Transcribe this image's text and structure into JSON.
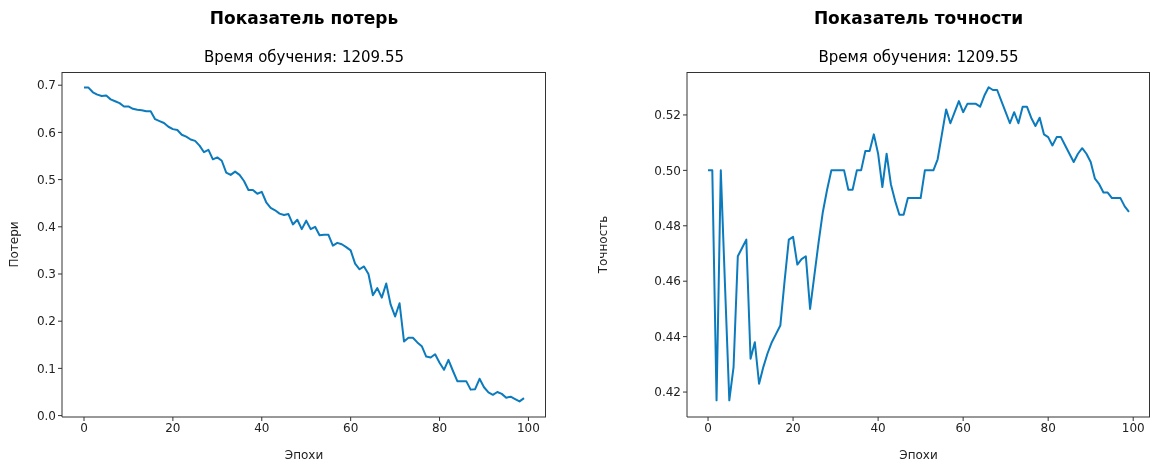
{
  "chart_data": [
    {
      "type": "line",
      "title": "Показатель потерь",
      "subtitle": "Время обучения: 1209.55",
      "xlabel": "Эпохи",
      "ylabel": "Потери",
      "x": [
        0,
        1,
        2,
        3,
        4,
        5,
        6,
        7,
        8,
        9,
        10,
        11,
        12,
        13,
        14,
        15,
        16,
        17,
        18,
        19,
        20,
        21,
        22,
        23,
        24,
        25,
        26,
        27,
        28,
        29,
        30,
        31,
        32,
        33,
        34,
        35,
        36,
        37,
        38,
        39,
        40,
        41,
        42,
        43,
        44,
        45,
        46,
        47,
        48,
        49,
        50,
        51,
        52,
        53,
        54,
        55,
        56,
        57,
        58,
        59,
        60,
        61,
        62,
        63,
        64,
        65,
        66,
        67,
        68,
        69,
        70,
        71,
        72,
        73,
        74,
        75,
        76,
        77,
        78,
        79,
        80,
        81,
        82,
        83,
        84,
        85,
        86,
        87,
        88,
        89,
        90,
        91,
        92,
        93,
        94,
        95,
        96,
        97,
        98,
        99
      ],
      "series": [
        {
          "color": "#0c7bbd",
          "values": [
            0.695,
            0.695,
            0.685,
            0.68,
            0.677,
            0.678,
            0.67,
            0.666,
            0.662,
            0.655,
            0.655,
            0.65,
            0.648,
            0.647,
            0.645,
            0.645,
            0.628,
            0.624,
            0.62,
            0.612,
            0.607,
            0.605,
            0.595,
            0.591,
            0.585,
            0.582,
            0.572,
            0.558,
            0.563,
            0.543,
            0.547,
            0.54,
            0.515,
            0.51,
            0.517,
            0.51,
            0.497,
            0.478,
            0.478,
            0.47,
            0.474,
            0.452,
            0.44,
            0.435,
            0.428,
            0.425,
            0.427,
            0.405,
            0.415,
            0.395,
            0.413,
            0.395,
            0.4,
            0.382,
            0.383,
            0.383,
            0.36,
            0.366,
            0.363,
            0.357,
            0.35,
            0.322,
            0.31,
            0.316,
            0.3,
            0.255,
            0.27,
            0.25,
            0.28,
            0.235,
            0.21,
            0.238,
            0.157,
            0.165,
            0.165,
            0.155,
            0.147,
            0.125,
            0.123,
            0.13,
            0.112,
            0.097,
            0.118,
            0.095,
            0.073,
            0.073,
            0.073,
            0.055,
            0.056,
            0.078,
            0.06,
            0.049,
            0.044,
            0.05,
            0.046,
            0.038,
            0.04,
            0.035,
            0.03,
            0.037
          ]
        }
      ],
      "xlim": [
        -4.95,
        103.95
      ],
      "xticks": [
        0,
        20,
        40,
        60,
        80,
        100
      ],
      "ylim": [
        -0.003,
        0.728
      ],
      "yticks": [
        {
          "value": 0,
          "label": "0.0"
        },
        0.1,
        0.2,
        0.3,
        0.4,
        0.5,
        0.6,
        0.7
      ],
      "grid": false,
      "legend": false
    },
    {
      "type": "line",
      "title": "Показатель точности",
      "subtitle": "Время обучения: 1209.55",
      "xlabel": "Эпохи",
      "ylabel": "Точность",
      "x": [
        0,
        1,
        2,
        3,
        4,
        5,
        6,
        7,
        8,
        9,
        10,
        11,
        12,
        13,
        14,
        15,
        16,
        17,
        18,
        19,
        20,
        21,
        22,
        23,
        24,
        25,
        26,
        27,
        28,
        29,
        30,
        31,
        32,
        33,
        34,
        35,
        36,
        37,
        38,
        39,
        40,
        41,
        42,
        43,
        44,
        45,
        46,
        47,
        48,
        49,
        50,
        51,
        52,
        53,
        54,
        55,
        56,
        57,
        58,
        59,
        60,
        61,
        62,
        63,
        64,
        65,
        66,
        67,
        68,
        69,
        70,
        71,
        72,
        73,
        74,
        75,
        76,
        77,
        78,
        79,
        80,
        81,
        82,
        83,
        84,
        85,
        86,
        87,
        88,
        89,
        90,
        91,
        92,
        93,
        94,
        95,
        96,
        97,
        98,
        99
      ],
      "series": [
        {
          "color": "#0c7bbd",
          "values": [
            0.5,
            0.5,
            0.417,
            0.5,
            0.458,
            0.417,
            0.429,
            0.469,
            0.472,
            0.475,
            0.432,
            0.438,
            0.423,
            0.429,
            0.434,
            0.438,
            0.441,
            0.444,
            0.46,
            0.475,
            0.476,
            0.466,
            0.468,
            0.469,
            0.45,
            0.462,
            0.474,
            0.485,
            0.493,
            0.5,
            0.5,
            0.5,
            0.5,
            0.493,
            0.493,
            0.5,
            0.5,
            0.507,
            0.507,
            0.513,
            0.506,
            0.494,
            0.506,
            0.495,
            0.489,
            0.484,
            0.484,
            0.49,
            0.49,
            0.49,
            0.49,
            0.5,
            0.5,
            0.5,
            0.504,
            0.513,
            0.522,
            0.517,
            0.521,
            0.525,
            0.521,
            0.524,
            0.524,
            0.524,
            0.523,
            0.527,
            0.53,
            0.529,
            0.529,
            0.525,
            0.521,
            0.517,
            0.521,
            0.517,
            0.523,
            0.523,
            0.519,
            0.516,
            0.519,
            0.513,
            0.512,
            0.509,
            0.512,
            0.512,
            0.509,
            0.506,
            0.503,
            0.506,
            0.508,
            0.506,
            0.503,
            0.497,
            0.495,
            0.492,
            0.492,
            0.49,
            0.49,
            0.49,
            0.487,
            0.485
          ]
        }
      ],
      "xlim": [
        -4.95,
        103.95
      ],
      "xticks": [
        0,
        20,
        40,
        60,
        80,
        100
      ],
      "ylim": [
        0.411,
        0.5355
      ],
      "yticks": [
        0.42,
        0.44,
        0.46,
        0.48,
        {
          "value": 0.5,
          "label": "0.50"
        },
        0.52
      ],
      "grid": false,
      "legend": false
    }
  ]
}
